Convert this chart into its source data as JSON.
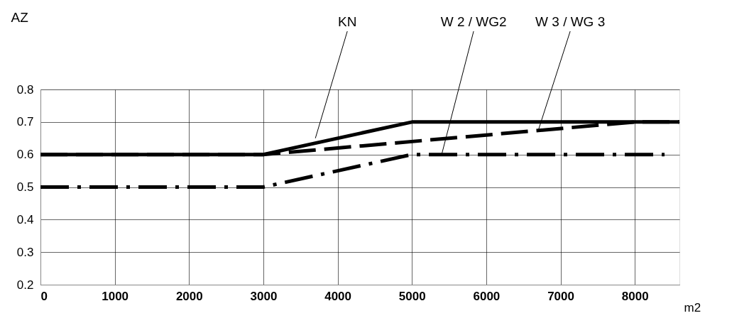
{
  "chart_data": {
    "type": "line",
    "xlabel": "m2",
    "ylabel": "AZ",
    "xlim": [
      0,
      8600
    ],
    "xticks": [
      0,
      1000,
      2000,
      3000,
      4000,
      5000,
      6000,
      7000,
      8000
    ],
    "ylim": [
      0.2,
      0.8
    ],
    "yticks": [
      0.2,
      0.3,
      0.4,
      0.5,
      0.6,
      0.7,
      0.8
    ],
    "grid": true,
    "series": [
      {
        "color": "#000000",
        "line_style": "solid",
        "x": [
          0,
          3000,
          5000,
          8600
        ],
        "values": [
          0.6,
          0.6,
          0.7,
          0.7
        ]
      },
      {
        "color": "#000000",
        "line_style": "dotted",
        "x": [
          0,
          3000,
          5000,
          8400
        ],
        "values": [
          0.5,
          0.5,
          0.6,
          0.6
        ]
      },
      {
        "color": "#000000",
        "line_style": "dashed",
        "x": [
          0,
          3000,
          8000,
          8600
        ],
        "values": [
          0.6,
          0.6,
          0.7,
          0.7
        ]
      }
    ],
    "annotations": [
      {
        "text": "KN",
        "x": 3700,
        "y": 0.65
      },
      {
        "text": "W 2 / WG2",
        "x": 5400,
        "y": 0.6
      },
      {
        "text": "W 3 / WG 3",
        "x": 6700,
        "y": 0.674
      }
    ]
  }
}
